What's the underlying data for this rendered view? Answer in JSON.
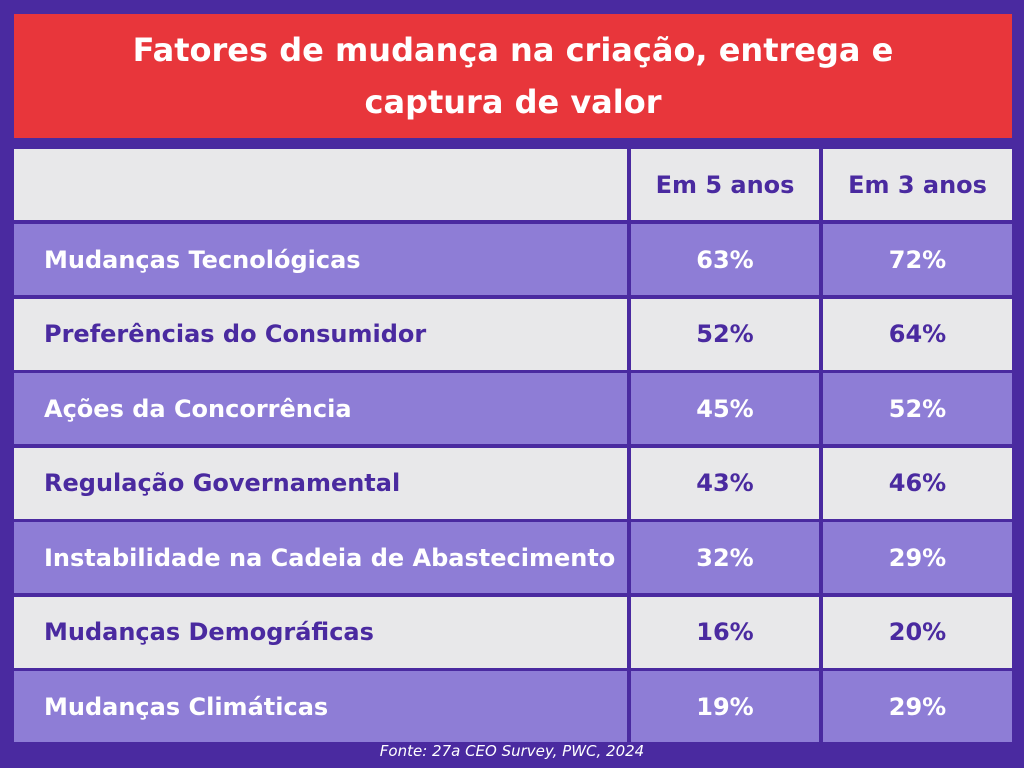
{
  "title": "Fatores de mudança na criação, entrega e captura de valor",
  "source": "Fonte: 27a CEO Survey, PWC, 2024",
  "colors": {
    "background": "#4a2aa0",
    "title_background": "#e8363b",
    "row_purple": "#8e7dd6",
    "row_grey": "#e8e8ea"
  },
  "chart_data": {
    "type": "table",
    "title": "Fatores de mudança na criação, entrega e captura de valor",
    "columns": [
      "",
      "Em 5 anos",
      "Em 3 anos"
    ],
    "rows": [
      {
        "label": "Mudanças Tecnológicas",
        "em_5_anos": "63%",
        "em_3_anos": "72%"
      },
      {
        "label": "Preferências do Consumidor",
        "em_5_anos": "52%",
        "em_3_anos": "64%"
      },
      {
        "label": "Ações da Concorrência",
        "em_5_anos": "45%",
        "em_3_anos": "52%"
      },
      {
        "label": "Regulação Governamental",
        "em_5_anos": "43%",
        "em_3_anos": "46%"
      },
      {
        "label": "Instabilidade na Cadeia de Abastecimento",
        "em_5_anos": "32%",
        "em_3_anos": "29%"
      },
      {
        "label": "Mudanças Demográficas",
        "em_5_anos": "16%",
        "em_3_anos": "20%"
      },
      {
        "label": "Mudanças Climáticas",
        "em_5_anos": "19%",
        "em_3_anos": "29%"
      }
    ],
    "source": "Fonte: 27a CEO Survey, PWC, 2024"
  }
}
